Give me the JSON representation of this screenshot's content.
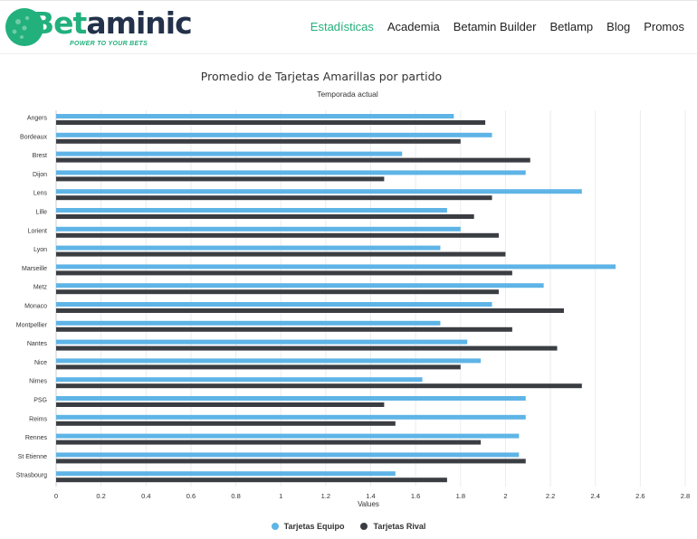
{
  "brand": {
    "name_accent": "Bet",
    "name_rest": "aminic",
    "tagline": "POWER TO YOUR BETS",
    "accent_color": "#22b07d",
    "dark_color": "#23314a"
  },
  "nav": [
    {
      "label": "Estadísticas",
      "active": true
    },
    {
      "label": "Academia",
      "active": false
    },
    {
      "label": "Betamin Builder",
      "active": false
    },
    {
      "label": "Betlamp",
      "active": false
    },
    {
      "label": "Blog",
      "active": false
    },
    {
      "label": "Promos",
      "active": false
    }
  ],
  "chart_data": {
    "type": "bar",
    "orientation": "horizontal",
    "title": "Promedio de Tarjetas Amarillas por partido",
    "subtitle": "Temporada actual",
    "xlabel": "Values",
    "ylabel": "",
    "xlim": [
      0,
      2.8
    ],
    "x_ticks": [
      "0",
      "0.2",
      "0.4",
      "0.6",
      "0.8",
      "1",
      "1.2",
      "1.4",
      "1.6",
      "1.8",
      "2",
      "2.2",
      "2.4",
      "2.6",
      "2.8"
    ],
    "grid": true,
    "legend_position": "bottom-center",
    "categories": [
      "Angers",
      "Bordeaux",
      "Brest",
      "Dijon",
      "Lens",
      "Lille",
      "Lorient",
      "Lyon",
      "Marseille",
      "Metz",
      "Monaco",
      "Montpellier",
      "Nantes",
      "Nice",
      "Nimes",
      "PSG",
      "Reims",
      "Rennes",
      "St Etienne",
      "Strasbourg"
    ],
    "series": [
      {
        "name": "Tarjetas Equipo",
        "color": "#5eb4e6",
        "values": [
          1.77,
          1.94,
          1.54,
          2.09,
          2.34,
          1.74,
          1.8,
          1.71,
          2.49,
          2.17,
          1.94,
          1.71,
          1.83,
          1.89,
          1.63,
          2.09,
          2.09,
          2.06,
          2.06,
          1.51
        ]
      },
      {
        "name": "Tarjetas Rival",
        "color": "#3a3d42",
        "values": [
          1.91,
          1.8,
          2.11,
          1.46,
          1.94,
          1.86,
          1.97,
          2.0,
          2.03,
          1.97,
          2.26,
          2.03,
          2.23,
          1.8,
          2.34,
          1.46,
          1.51,
          1.89,
          2.09,
          1.74
        ]
      }
    ]
  }
}
